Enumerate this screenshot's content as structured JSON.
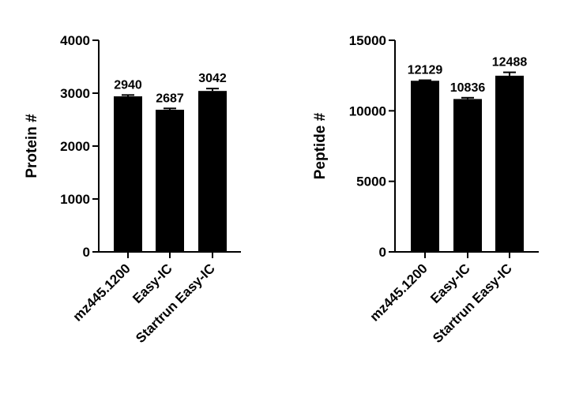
{
  "chart_data": [
    {
      "type": "bar",
      "ylabel": "Protein #",
      "categories": [
        "mz445.1200",
        "Easy-IC",
        "Startrun Easy-IC"
      ],
      "values": [
        2940,
        2687,
        3042
      ],
      "errors": [
        25,
        25,
        45
      ],
      "ylim": [
        0,
        4000
      ],
      "yticks": [
        0,
        1000,
        2000,
        3000,
        4000
      ],
      "ytick_labels": [
        "0",
        "1000",
        "2000",
        "3000",
        "4000"
      ],
      "data_labels": [
        "2940",
        "2687",
        "3042"
      ],
      "bar_color": "#000000",
      "grid": false
    },
    {
      "type": "bar",
      "ylabel": "Peptide #",
      "categories": [
        "mz445.1200",
        "Easy-IC",
        "Startrun Easy-IC"
      ],
      "values": [
        12129,
        10836,
        12488
      ],
      "errors": [
        40,
        90,
        240
      ],
      "ylim": [
        0,
        15000
      ],
      "yticks": [
        0,
        5000,
        10000,
        15000
      ],
      "ytick_labels": [
        "0",
        "5000",
        "10000",
        "15000"
      ],
      "data_labels": [
        "12129",
        "10836",
        "12488"
      ],
      "bar_color": "#000000",
      "grid": false
    }
  ]
}
